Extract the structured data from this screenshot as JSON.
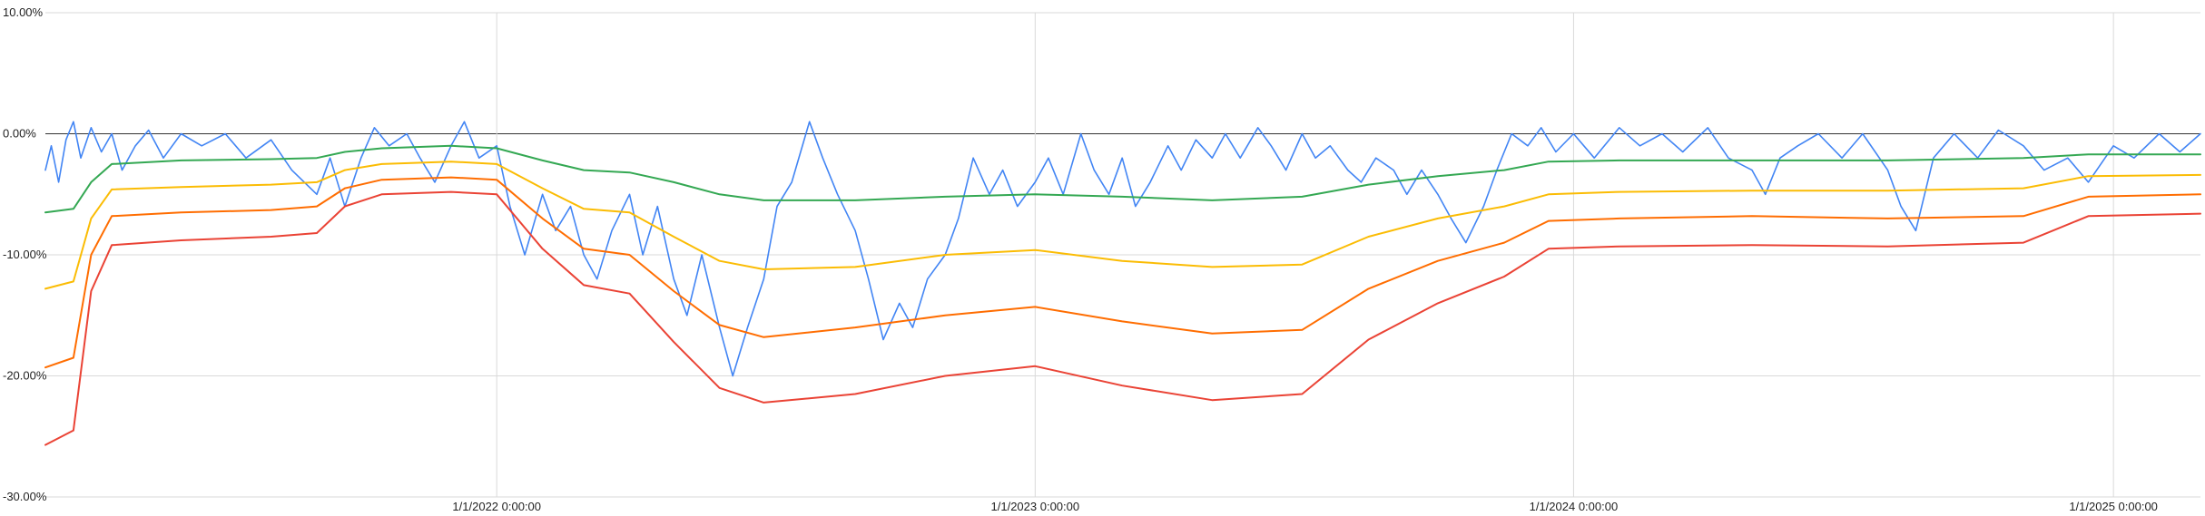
{
  "chart_data": {
    "type": "line",
    "title": "",
    "xlabel": "",
    "ylabel": "",
    "x_range": [
      "2021-03-01",
      "2025-03-01"
    ],
    "y_range": [
      -0.3,
      0.1
    ],
    "y_ticks": [
      {
        "value": 0.1,
        "label": "10.00%"
      },
      {
        "value": 0.0,
        "label": "0.00%"
      },
      {
        "value": -0.1,
        "label": "-10.00%"
      },
      {
        "value": -0.2,
        "label": "-20.00%"
      },
      {
        "value": -0.3,
        "label": "-30.00%"
      }
    ],
    "x_ticks": [
      {
        "value": "2022-01-01",
        "label": "1/1/2022 0:00:00"
      },
      {
        "value": "2023-01-01",
        "label": "1/1/2023 0:00:00"
      },
      {
        "value": "2024-01-01",
        "label": "1/1/2024 0:00:00"
      },
      {
        "value": "2025-01-01",
        "label": "1/1/2025 0:00:00"
      }
    ],
    "gridlines": true,
    "legend": "none",
    "series": [
      {
        "color": "#4285f4",
        "points": [
          [
            "2021-03-01",
            -0.03
          ],
          [
            "2021-03-05",
            -0.01
          ],
          [
            "2021-03-10",
            -0.04
          ],
          [
            "2021-03-15",
            -0.005
          ],
          [
            "2021-03-20",
            0.01
          ],
          [
            "2021-03-25",
            -0.02
          ],
          [
            "2021-04-01",
            0.005
          ],
          [
            "2021-04-08",
            -0.015
          ],
          [
            "2021-04-15",
            0.0
          ],
          [
            "2021-04-22",
            -0.03
          ],
          [
            "2021-05-01",
            -0.01
          ],
          [
            "2021-05-10",
            0.003
          ],
          [
            "2021-05-20",
            -0.02
          ],
          [
            "2021-06-01",
            0.0
          ],
          [
            "2021-06-15",
            -0.01
          ],
          [
            "2021-07-01",
            0.0
          ],
          [
            "2021-07-15",
            -0.02
          ],
          [
            "2021-08-01",
            -0.005
          ],
          [
            "2021-08-15",
            -0.03
          ],
          [
            "2021-09-01",
            -0.05
          ],
          [
            "2021-09-10",
            -0.02
          ],
          [
            "2021-09-20",
            -0.06
          ],
          [
            "2021-10-01",
            -0.02
          ],
          [
            "2021-10-10",
            0.005
          ],
          [
            "2021-10-20",
            -0.01
          ],
          [
            "2021-11-01",
            0.0
          ],
          [
            "2021-11-10",
            -0.02
          ],
          [
            "2021-11-20",
            -0.04
          ],
          [
            "2021-12-01",
            -0.01
          ],
          [
            "2021-12-10",
            0.01
          ],
          [
            "2021-12-20",
            -0.02
          ],
          [
            "2022-01-01",
            -0.01
          ],
          [
            "2022-01-10",
            -0.06
          ],
          [
            "2022-01-20",
            -0.1
          ],
          [
            "2022-02-01",
            -0.05
          ],
          [
            "2022-02-10",
            -0.08
          ],
          [
            "2022-02-20",
            -0.06
          ],
          [
            "2022-03-01",
            -0.1
          ],
          [
            "2022-03-10",
            -0.12
          ],
          [
            "2022-03-20",
            -0.08
          ],
          [
            "2022-04-01",
            -0.05
          ],
          [
            "2022-04-10",
            -0.1
          ],
          [
            "2022-04-20",
            -0.06
          ],
          [
            "2022-05-01",
            -0.12
          ],
          [
            "2022-05-10",
            -0.15
          ],
          [
            "2022-05-20",
            -0.1
          ],
          [
            "2022-06-01",
            -0.16
          ],
          [
            "2022-06-10",
            -0.2
          ],
          [
            "2022-06-20",
            -0.16
          ],
          [
            "2022-07-01",
            -0.12
          ],
          [
            "2022-07-10",
            -0.06
          ],
          [
            "2022-07-20",
            -0.04
          ],
          [
            "2022-08-01",
            0.01
          ],
          [
            "2022-08-10",
            -0.02
          ],
          [
            "2022-08-20",
            -0.05
          ],
          [
            "2022-09-01",
            -0.08
          ],
          [
            "2022-09-10",
            -0.12
          ],
          [
            "2022-09-20",
            -0.17
          ],
          [
            "2022-10-01",
            -0.14
          ],
          [
            "2022-10-10",
            -0.16
          ],
          [
            "2022-10-20",
            -0.12
          ],
          [
            "2022-11-01",
            -0.1
          ],
          [
            "2022-11-10",
            -0.07
          ],
          [
            "2022-11-20",
            -0.02
          ],
          [
            "2022-12-01",
            -0.05
          ],
          [
            "2022-12-10",
            -0.03
          ],
          [
            "2022-12-20",
            -0.06
          ],
          [
            "2023-01-01",
            -0.04
          ],
          [
            "2023-01-10",
            -0.02
          ],
          [
            "2023-01-20",
            -0.05
          ],
          [
            "2023-02-01",
            0.0
          ],
          [
            "2023-02-10",
            -0.03
          ],
          [
            "2023-02-20",
            -0.05
          ],
          [
            "2023-03-01",
            -0.02
          ],
          [
            "2023-03-10",
            -0.06
          ],
          [
            "2023-03-20",
            -0.04
          ],
          [
            "2023-04-01",
            -0.01
          ],
          [
            "2023-04-10",
            -0.03
          ],
          [
            "2023-04-20",
            -0.005
          ],
          [
            "2023-05-01",
            -0.02
          ],
          [
            "2023-05-10",
            0.0
          ],
          [
            "2023-05-20",
            -0.02
          ],
          [
            "2023-06-01",
            0.005
          ],
          [
            "2023-06-10",
            -0.01
          ],
          [
            "2023-06-20",
            -0.03
          ],
          [
            "2023-07-01",
            0.0
          ],
          [
            "2023-07-10",
            -0.02
          ],
          [
            "2023-07-20",
            -0.01
          ],
          [
            "2023-08-01",
            -0.03
          ],
          [
            "2023-08-10",
            -0.04
          ],
          [
            "2023-08-20",
            -0.02
          ],
          [
            "2023-09-01",
            -0.03
          ],
          [
            "2023-09-10",
            -0.05
          ],
          [
            "2023-09-20",
            -0.03
          ],
          [
            "2023-10-01",
            -0.05
          ],
          [
            "2023-10-10",
            -0.07
          ],
          [
            "2023-10-20",
            -0.09
          ],
          [
            "2023-11-01",
            -0.06
          ],
          [
            "2023-11-10",
            -0.03
          ],
          [
            "2023-11-20",
            0.0
          ],
          [
            "2023-12-01",
            -0.01
          ],
          [
            "2023-12-10",
            0.005
          ],
          [
            "2023-12-20",
            -0.015
          ],
          [
            "2024-01-01",
            0.0
          ],
          [
            "2024-01-15",
            -0.02
          ],
          [
            "2024-02-01",
            0.005
          ],
          [
            "2024-02-15",
            -0.01
          ],
          [
            "2024-03-01",
            0.0
          ],
          [
            "2024-03-15",
            -0.015
          ],
          [
            "2024-04-01",
            0.005
          ],
          [
            "2024-04-15",
            -0.02
          ],
          [
            "2024-05-01",
            -0.03
          ],
          [
            "2024-05-10",
            -0.05
          ],
          [
            "2024-05-20",
            -0.02
          ],
          [
            "2024-06-01",
            -0.01
          ],
          [
            "2024-06-15",
            0.0
          ],
          [
            "2024-07-01",
            -0.02
          ],
          [
            "2024-07-15",
            0.0
          ],
          [
            "2024-08-01",
            -0.03
          ],
          [
            "2024-08-10",
            -0.06
          ],
          [
            "2024-08-20",
            -0.08
          ],
          [
            "2024-09-01",
            -0.02
          ],
          [
            "2024-09-15",
            0.0
          ],
          [
            "2024-10-01",
            -0.02
          ],
          [
            "2024-10-15",
            0.003
          ],
          [
            "2024-11-01",
            -0.01
          ],
          [
            "2024-11-15",
            -0.03
          ],
          [
            "2024-12-01",
            -0.02
          ],
          [
            "2024-12-15",
            -0.04
          ],
          [
            "2025-01-01",
            -0.01
          ],
          [
            "2025-01-15",
            -0.02
          ],
          [
            "2025-02-01",
            0.0
          ],
          [
            "2025-02-15",
            -0.015
          ],
          [
            "2025-03-01",
            0.0
          ]
        ]
      },
      {
        "color": "#34a853",
        "points": [
          [
            "2021-03-01",
            -0.065
          ],
          [
            "2021-03-20",
            -0.062
          ],
          [
            "2021-04-01",
            -0.04
          ],
          [
            "2021-04-15",
            -0.025
          ],
          [
            "2021-06-01",
            -0.022
          ],
          [
            "2021-08-01",
            -0.021
          ],
          [
            "2021-09-01",
            -0.02
          ],
          [
            "2021-09-20",
            -0.015
          ],
          [
            "2021-10-15",
            -0.012
          ],
          [
            "2021-12-01",
            -0.01
          ],
          [
            "2022-01-01",
            -0.012
          ],
          [
            "2022-02-01",
            -0.022
          ],
          [
            "2022-03-01",
            -0.03
          ],
          [
            "2022-04-01",
            -0.032
          ],
          [
            "2022-05-01",
            -0.04
          ],
          [
            "2022-06-01",
            -0.05
          ],
          [
            "2022-07-01",
            -0.055
          ],
          [
            "2022-09-01",
            -0.055
          ],
          [
            "2022-11-01",
            -0.052
          ],
          [
            "2023-01-01",
            -0.05
          ],
          [
            "2023-03-01",
            -0.052
          ],
          [
            "2023-05-01",
            -0.055
          ],
          [
            "2023-07-01",
            -0.052
          ],
          [
            "2023-08-15",
            -0.042
          ],
          [
            "2023-10-01",
            -0.035
          ],
          [
            "2023-11-15",
            -0.03
          ],
          [
            "2023-12-15",
            -0.023
          ],
          [
            "2024-02-01",
            -0.022
          ],
          [
            "2024-05-01",
            -0.022
          ],
          [
            "2024-08-01",
            -0.022
          ],
          [
            "2024-11-01",
            -0.02
          ],
          [
            "2024-12-15",
            -0.017
          ],
          [
            "2025-03-01",
            -0.017
          ]
        ]
      },
      {
        "color": "#fbbc04",
        "points": [
          [
            "2021-03-01",
            -0.128
          ],
          [
            "2021-03-20",
            -0.122
          ],
          [
            "2021-04-01",
            -0.07
          ],
          [
            "2021-04-15",
            -0.046
          ],
          [
            "2021-06-01",
            -0.044
          ],
          [
            "2021-08-01",
            -0.042
          ],
          [
            "2021-09-01",
            -0.04
          ],
          [
            "2021-09-20",
            -0.03
          ],
          [
            "2021-10-15",
            -0.025
          ],
          [
            "2021-12-01",
            -0.023
          ],
          [
            "2022-01-01",
            -0.025
          ],
          [
            "2022-02-01",
            -0.045
          ],
          [
            "2022-03-01",
            -0.062
          ],
          [
            "2022-04-01",
            -0.065
          ],
          [
            "2022-05-01",
            -0.085
          ],
          [
            "2022-06-01",
            -0.105
          ],
          [
            "2022-07-01",
            -0.112
          ],
          [
            "2022-09-01",
            -0.11
          ],
          [
            "2022-11-01",
            -0.1
          ],
          [
            "2023-01-01",
            -0.096
          ],
          [
            "2023-03-01",
            -0.105
          ],
          [
            "2023-05-01",
            -0.11
          ],
          [
            "2023-07-01",
            -0.108
          ],
          [
            "2023-08-15",
            -0.085
          ],
          [
            "2023-10-01",
            -0.07
          ],
          [
            "2023-11-15",
            -0.06
          ],
          [
            "2023-12-15",
            -0.05
          ],
          [
            "2024-02-01",
            -0.048
          ],
          [
            "2024-05-01",
            -0.047
          ],
          [
            "2024-08-01",
            -0.047
          ],
          [
            "2024-11-01",
            -0.045
          ],
          [
            "2024-12-15",
            -0.035
          ],
          [
            "2025-03-01",
            -0.034
          ]
        ]
      },
      {
        "color": "#ff6d01",
        "points": [
          [
            "2021-03-01",
            -0.193
          ],
          [
            "2021-03-20",
            -0.185
          ],
          [
            "2021-04-01",
            -0.1
          ],
          [
            "2021-04-15",
            -0.068
          ],
          [
            "2021-06-01",
            -0.065
          ],
          [
            "2021-08-01",
            -0.063
          ],
          [
            "2021-09-01",
            -0.06
          ],
          [
            "2021-09-20",
            -0.045
          ],
          [
            "2021-10-15",
            -0.038
          ],
          [
            "2021-12-01",
            -0.036
          ],
          [
            "2022-01-01",
            -0.038
          ],
          [
            "2022-02-01",
            -0.07
          ],
          [
            "2022-03-01",
            -0.095
          ],
          [
            "2022-04-01",
            -0.1
          ],
          [
            "2022-05-01",
            -0.13
          ],
          [
            "2022-06-01",
            -0.158
          ],
          [
            "2022-07-01",
            -0.168
          ],
          [
            "2022-09-01",
            -0.16
          ],
          [
            "2022-11-01",
            -0.15
          ],
          [
            "2023-01-01",
            -0.143
          ],
          [
            "2023-03-01",
            -0.155
          ],
          [
            "2023-05-01",
            -0.165
          ],
          [
            "2023-07-01",
            -0.162
          ],
          [
            "2023-08-15",
            -0.128
          ],
          [
            "2023-10-01",
            -0.105
          ],
          [
            "2023-11-15",
            -0.09
          ],
          [
            "2023-12-15",
            -0.072
          ],
          [
            "2024-02-01",
            -0.07
          ],
          [
            "2024-05-01",
            -0.068
          ],
          [
            "2024-08-01",
            -0.07
          ],
          [
            "2024-11-01",
            -0.068
          ],
          [
            "2024-12-15",
            -0.052
          ],
          [
            "2025-03-01",
            -0.05
          ]
        ]
      },
      {
        "color": "#ea4335",
        "points": [
          [
            "2021-03-01",
            -0.257
          ],
          [
            "2021-03-20",
            -0.245
          ],
          [
            "2021-04-01",
            -0.13
          ],
          [
            "2021-04-15",
            -0.092
          ],
          [
            "2021-06-01",
            -0.088
          ],
          [
            "2021-08-01",
            -0.085
          ],
          [
            "2021-09-01",
            -0.082
          ],
          [
            "2021-09-20",
            -0.06
          ],
          [
            "2021-10-15",
            -0.05
          ],
          [
            "2021-12-01",
            -0.048
          ],
          [
            "2022-01-01",
            -0.05
          ],
          [
            "2022-02-01",
            -0.095
          ],
          [
            "2022-03-01",
            -0.125
          ],
          [
            "2022-04-01",
            -0.132
          ],
          [
            "2022-05-01",
            -0.172
          ],
          [
            "2022-06-01",
            -0.21
          ],
          [
            "2022-07-01",
            -0.222
          ],
          [
            "2022-09-01",
            -0.215
          ],
          [
            "2022-11-01",
            -0.2
          ],
          [
            "2023-01-01",
            -0.192
          ],
          [
            "2023-03-01",
            -0.208
          ],
          [
            "2023-05-01",
            -0.22
          ],
          [
            "2023-07-01",
            -0.215
          ],
          [
            "2023-08-15",
            -0.17
          ],
          [
            "2023-10-01",
            -0.14
          ],
          [
            "2023-11-15",
            -0.118
          ],
          [
            "2023-12-15",
            -0.095
          ],
          [
            "2024-02-01",
            -0.093
          ],
          [
            "2024-05-01",
            -0.092
          ],
          [
            "2024-08-01",
            -0.093
          ],
          [
            "2024-11-01",
            -0.09
          ],
          [
            "2024-12-15",
            -0.068
          ],
          [
            "2025-03-01",
            -0.066
          ]
        ]
      }
    ]
  }
}
